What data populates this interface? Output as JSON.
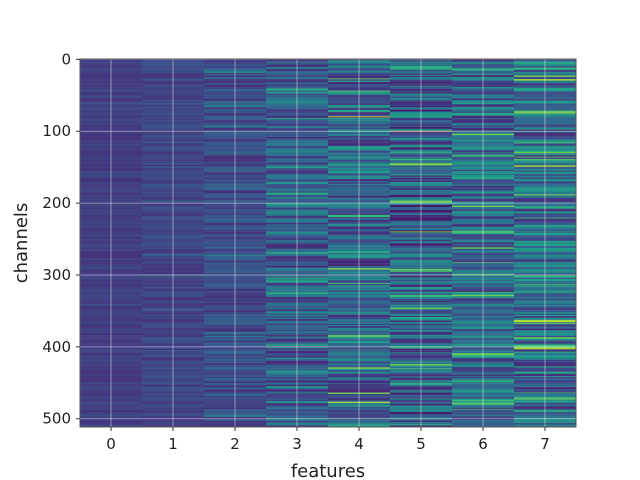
{
  "chart_data": {
    "type": "heatmap",
    "title": "",
    "xlabel": "features",
    "ylabel": "channels",
    "x_categories": [
      "0",
      "1",
      "2",
      "3",
      "4",
      "5",
      "6",
      "7"
    ],
    "y_ticks": [
      0,
      100,
      200,
      300,
      400,
      500
    ],
    "y_range": [
      0,
      511
    ],
    "rows": 512,
    "colormap": "viridis",
    "grid": true,
    "column_mean_intensity": [
      0.18,
      0.2,
      0.23,
      0.27,
      0.32,
      0.3,
      0.33,
      0.35
    ],
    "column_spread": [
      0.04,
      0.06,
      0.1,
      0.16,
      0.22,
      0.24,
      0.22,
      0.24
    ],
    "highlights": [
      {
        "x": 4,
        "y": 80,
        "value": 1.0
      },
      {
        "x": 4,
        "y": 477,
        "value": 1.0
      },
      {
        "x": 5,
        "y": 100,
        "value": 1.0
      },
      {
        "x": 5,
        "y": 240,
        "value": 0.85
      },
      {
        "x": 5,
        "y": 425,
        "value": 0.85
      },
      {
        "x": 6,
        "y": 283,
        "value": 0.75
      },
      {
        "x": 7,
        "y": 313,
        "value": 0.7
      },
      {
        "x": 3,
        "y": 435,
        "value": 0.6
      },
      {
        "x": 2,
        "y": 18,
        "value": 0.55
      }
    ]
  }
}
